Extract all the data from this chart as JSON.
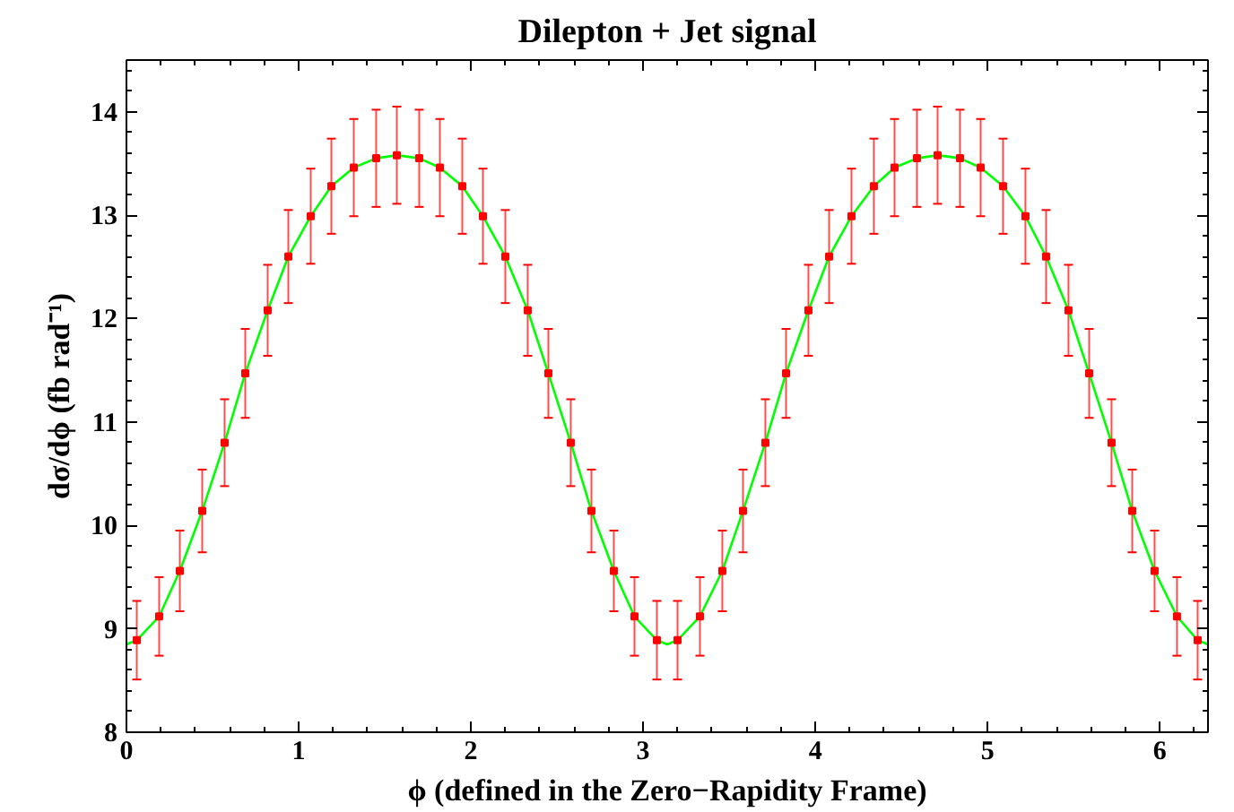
{
  "chart_data": {
    "type": "scatter",
    "title": "Dilepton + Jet signal",
    "xlabel": "ϕ (defined in the Zero−Rapidity Frame)",
    "ylabel": "dσ/dϕ (fb rad⁻¹)",
    "xlim": [
      0,
      6.28
    ],
    "ylim": [
      8,
      14.5
    ],
    "xticks": [
      0,
      1,
      2,
      3,
      4,
      5,
      6
    ],
    "yticks": [
      8,
      9,
      10,
      11,
      12,
      13,
      14
    ],
    "grid": false,
    "series": [
      {
        "type": "line",
        "color": "#00ff00",
        "marker": "none",
        "line_style": "solid",
        "x": [
          0,
          0.06,
          0.19,
          0.31,
          0.44,
          0.57,
          0.69,
          0.82,
          0.94,
          1.07,
          1.19,
          1.32,
          1.45,
          1.57,
          1.7,
          1.82,
          1.95,
          2.07,
          2.2,
          2.33,
          2.45,
          2.58,
          2.7,
          2.83,
          2.95,
          3.08,
          3.14,
          3.2,
          3.33,
          3.46,
          3.58,
          3.71,
          3.83,
          3.96,
          4.08,
          4.21,
          4.34,
          4.46,
          4.59,
          4.71,
          4.84,
          4.96,
          5.09,
          5.22,
          5.34,
          5.47,
          5.59,
          5.72,
          5.84,
          5.97,
          6.1,
          6.22,
          6.28
        ],
        "values": [
          8.85,
          8.89,
          9.12,
          9.56,
          10.14,
          10.8,
          11.47,
          12.08,
          12.6,
          12.99,
          13.28,
          13.46,
          13.55,
          13.58,
          13.55,
          13.46,
          13.28,
          12.99,
          12.6,
          12.08,
          11.47,
          10.8,
          10.14,
          9.56,
          9.12,
          8.89,
          8.85,
          8.89,
          9.12,
          9.56,
          10.14,
          10.8,
          11.47,
          12.08,
          12.6,
          12.99,
          13.28,
          13.46,
          13.55,
          13.58,
          13.55,
          13.46,
          13.28,
          12.99,
          12.6,
          12.08,
          11.47,
          10.8,
          10.14,
          9.56,
          9.12,
          8.89,
          8.85
        ]
      },
      {
        "color": "#ff0000",
        "marker": "square",
        "x": [
          0.06,
          0.19,
          0.31,
          0.44,
          0.57,
          0.69,
          0.82,
          0.94,
          1.07,
          1.19,
          1.32,
          1.45,
          1.57,
          1.7,
          1.82,
          1.95,
          2.07,
          2.2,
          2.33,
          2.45,
          2.58,
          2.7,
          2.83,
          2.95,
          3.08,
          3.2,
          3.33,
          3.46,
          3.58,
          3.71,
          3.83,
          3.96,
          4.08,
          4.21,
          4.34,
          4.46,
          4.59,
          4.71,
          4.84,
          4.96,
          5.09,
          5.22,
          5.34,
          5.47,
          5.59,
          5.72,
          5.84,
          5.97,
          6.1,
          6.22
        ],
        "values": [
          8.89,
          9.12,
          9.56,
          10.14,
          10.8,
          11.47,
          12.08,
          12.6,
          12.99,
          13.28,
          13.46,
          13.55,
          13.58,
          13.55,
          13.46,
          13.28,
          12.99,
          12.6,
          12.08,
          11.47,
          10.8,
          10.14,
          9.56,
          9.12,
          8.89,
          8.89,
          9.12,
          9.56,
          10.14,
          10.8,
          11.47,
          12.08,
          12.6,
          12.99,
          13.28,
          13.46,
          13.55,
          13.58,
          13.55,
          13.46,
          13.28,
          12.99,
          12.6,
          12.08,
          11.47,
          10.8,
          10.14,
          9.56,
          9.12,
          8.89
        ],
        "errors": [
          0.38,
          0.38,
          0.39,
          0.4,
          0.42,
          0.43,
          0.44,
          0.45,
          0.46,
          0.46,
          0.47,
          0.47,
          0.47,
          0.47,
          0.47,
          0.46,
          0.46,
          0.45,
          0.44,
          0.43,
          0.42,
          0.4,
          0.39,
          0.38,
          0.38,
          0.38,
          0.38,
          0.39,
          0.4,
          0.42,
          0.43,
          0.44,
          0.45,
          0.46,
          0.46,
          0.47,
          0.47,
          0.47,
          0.47,
          0.47,
          0.46,
          0.46,
          0.45,
          0.44,
          0.43,
          0.42,
          0.4,
          0.39,
          0.38,
          0.38
        ]
      }
    ]
  }
}
